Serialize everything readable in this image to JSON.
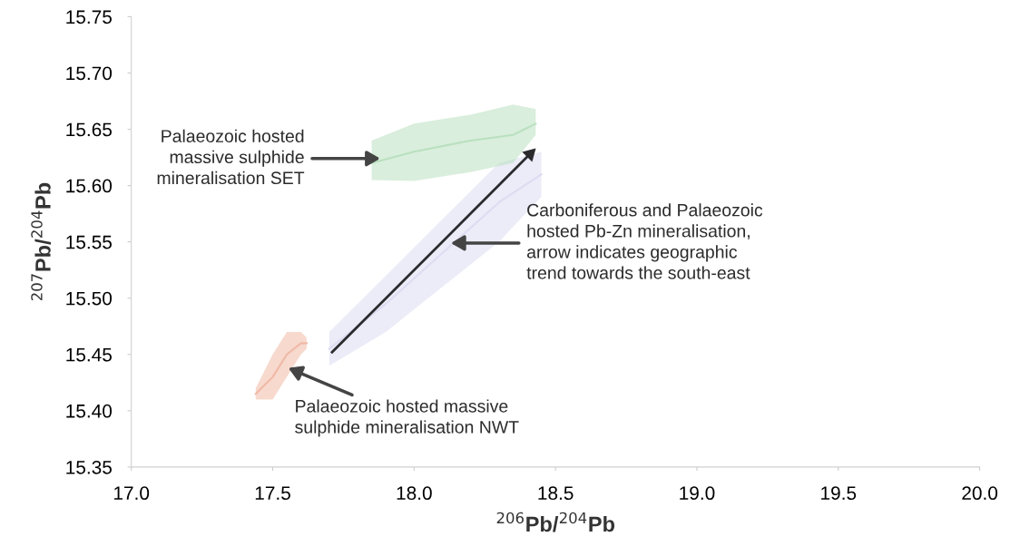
{
  "chart_data": {
    "type": "line",
    "xlabel": "$^{206}$Pb/$^{204}$Pb",
    "ylabel": "$^{207}$Pb/$^{204}$Pb",
    "xlim": [
      17.0,
      20.0
    ],
    "xticks": [
      {
        "value": 17.0,
        "label": "17.0"
      },
      {
        "value": 17.5,
        "label": "17.5"
      },
      {
        "value": 18.0,
        "label": "18.0"
      },
      {
        "value": 18.5,
        "label": "18.5"
      },
      {
        "value": 19.0,
        "label": "19.0"
      },
      {
        "value": 19.5,
        "label": "19.5"
      },
      {
        "value": 20.0,
        "label": "20.0"
      }
    ],
    "ylim": [
      15.35,
      15.75
    ],
    "yticks": [
      15.35,
      {
        "value": 15.4,
        "label": "15.40"
      },
      15.45,
      {
        "value": 15.5,
        "label": "15.50"
      },
      15.55,
      {
        "value": 15.6,
        "label": "15.60"
      },
      15.65,
      {
        "value": 15.7,
        "label": "15.70"
      },
      15.75
    ],
    "grid": false,
    "legend": false,
    "series": [
      {
        "color": "#f0b9a6",
        "x": [
          17.44,
          17.5,
          17.55,
          17.6,
          17.62
        ],
        "values": [
          15.415,
          15.43,
          15.45,
          15.46,
          15.46
        ],
        "lower": [
          15.41,
          15.41,
          15.43,
          15.45,
          15.455
        ],
        "upper": [
          15.42,
          15.45,
          15.47,
          15.47,
          15.465
        ]
      },
      {
        "color": "#dcdcf2",
        "x": [
          17.7,
          17.9,
          18.1,
          18.3,
          18.45
        ],
        "values": [
          15.455,
          15.495,
          15.54,
          15.585,
          15.61
        ],
        "lower": [
          15.44,
          15.47,
          15.51,
          15.55,
          15.59
        ],
        "upper": [
          15.47,
          15.52,
          15.57,
          15.62,
          15.63
        ]
      },
      {
        "color": "#b9e0bf",
        "x": [
          17.85,
          18.0,
          18.2,
          18.35,
          18.43
        ],
        "values": [
          15.62,
          15.63,
          15.64,
          15.645,
          15.655
        ],
        "lower": [
          15.605,
          15.604,
          15.612,
          15.62,
          15.645
        ],
        "upper": [
          15.64,
          15.655,
          15.663,
          15.672,
          15.668
        ]
      },
      {
        "type": "line",
        "color": "#2b2b2e",
        "marker": "triangle",
        "x": [
          17.71,
          18.41
        ],
        "values": [
          15.452,
          15.628
        ]
      }
    ],
    "annotations": [
      {
        "text": "Palaeozoic hosted\nmassive sulphide\nmineralisation SET",
        "x": 17.88,
        "y": 15.624
      },
      {
        "text": "Carboniferous and Palaeozoic\nhosted Pb-Zn mineralisation,\narrow indicates geographic\ntrend towards the south-east",
        "x": 18.13,
        "y": 15.549
      },
      {
        "text": "Palaeozoic hosted massive\nsulphide mineralisation NWT",
        "x": 17.555,
        "y": 15.438
      }
    ]
  }
}
